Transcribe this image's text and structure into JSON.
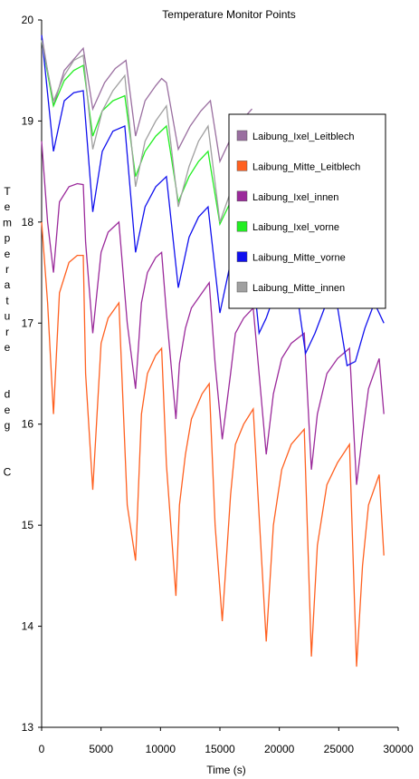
{
  "chart_data": {
    "type": "line",
    "title": "Temperature Monitor Points",
    "xlabel": "Time  (s)",
    "ylabel": "Temperature  deg  C",
    "xlim": [
      0,
      30000
    ],
    "ylim": [
      13,
      20
    ],
    "xticks": [
      0,
      5000,
      10000,
      15000,
      20000,
      25000,
      30000
    ],
    "yticks": [
      13,
      14,
      15,
      16,
      17,
      18,
      19,
      20
    ],
    "grid": false,
    "legend_position": "right, upper-middle",
    "series": [
      {
        "name": "Laibung_Ixel_Leitblech",
        "color": "#9a6fa0",
        "x": [
          0,
          1000,
          1900,
          3500,
          4300,
          5300,
          6200,
          7100,
          7900,
          8700,
          9600,
          10100,
          10500,
          11500,
          12500,
          13400,
          14200,
          15000,
          16000,
          16800,
          17700
        ],
        "y": [
          19.85,
          19.15,
          19.5,
          19.72,
          19.12,
          19.38,
          19.52,
          19.6,
          18.85,
          19.2,
          19.35,
          19.42,
          19.38,
          18.72,
          18.95,
          19.1,
          19.2,
          18.6,
          18.85,
          19.0,
          19.12
        ]
      },
      {
        "name": "Laibung_Mitte_Leitblech",
        "color": "#ff6020",
        "x": [
          0,
          500,
          1000,
          1500,
          2300,
          3000,
          3500,
          3700,
          4300,
          5000,
          5600,
          6500,
          7200,
          7900,
          8400,
          8900,
          9600,
          10100,
          10500,
          11300,
          11600,
          12100,
          12600,
          13500,
          14100,
          14600,
          15200,
          15900,
          16300,
          17000,
          17800,
          18300,
          18900,
          19500,
          20200,
          21000,
          22100,
          22700,
          23200,
          24000,
          24900,
          25900,
          26500,
          27000,
          27500,
          28400,
          28800
        ],
        "y": [
          18.0,
          17.2,
          16.1,
          17.3,
          17.6,
          17.67,
          17.67,
          16.5,
          15.35,
          16.8,
          17.05,
          17.2,
          15.2,
          14.65,
          16.1,
          16.5,
          16.68,
          16.75,
          15.6,
          14.3,
          15.2,
          15.7,
          16.05,
          16.3,
          16.4,
          15.0,
          14.05,
          15.3,
          15.8,
          16.0,
          16.15,
          15.1,
          13.85,
          15.0,
          15.55,
          15.8,
          15.95,
          13.7,
          14.8,
          15.4,
          15.62,
          15.8,
          13.6,
          14.6,
          15.2,
          15.5,
          14.7
        ]
      },
      {
        "name": "Laibung_Ixel_innen",
        "color": "#9b2a9b",
        "x": [
          0,
          500,
          1000,
          1500,
          2300,
          3000,
          3500,
          3700,
          4300,
          5000,
          5600,
          6500,
          7200,
          7900,
          8400,
          8900,
          9600,
          10100,
          10500,
          11300,
          11600,
          12100,
          12600,
          13500,
          14100,
          14600,
          15200,
          15900,
          16300,
          17000,
          17800,
          18300,
          18900,
          19500,
          20200,
          21000,
          22100,
          22700,
          23200,
          24000,
          24900,
          25900,
          26500,
          27000,
          27500,
          28400,
          28800
        ],
        "y": [
          18.8,
          18.0,
          17.5,
          18.2,
          18.35,
          18.38,
          18.37,
          17.8,
          16.9,
          17.7,
          17.9,
          18.0,
          17.0,
          16.35,
          17.2,
          17.5,
          17.65,
          17.7,
          17.1,
          16.05,
          16.6,
          16.95,
          17.15,
          17.3,
          17.4,
          16.6,
          15.85,
          16.5,
          16.9,
          17.05,
          17.15,
          16.5,
          15.7,
          16.3,
          16.65,
          16.8,
          16.9,
          15.55,
          16.1,
          16.5,
          16.65,
          16.75,
          15.4,
          15.9,
          16.35,
          16.65,
          16.1
        ]
      },
      {
        "name": "Laibung_Ixel_vorne",
        "color": "#22ee22",
        "x": [
          0,
          1000,
          1900,
          2700,
          3500,
          4300,
          5100,
          6000,
          7000,
          7900,
          8700,
          9600,
          10500,
          11500,
          12400,
          13200,
          14000,
          15000,
          15900
        ],
        "y": [
          19.8,
          19.15,
          19.4,
          19.5,
          19.55,
          18.85,
          19.1,
          19.2,
          19.25,
          18.45,
          18.7,
          18.85,
          18.95,
          18.2,
          18.45,
          18.6,
          18.7,
          17.98,
          18.2
        ]
      },
      {
        "name": "Laibung_Mitte_vorne",
        "color": "#1010ee",
        "x": [
          0,
          1000,
          1900,
          2700,
          3500,
          4300,
          5100,
          6000,
          7000,
          7900,
          8700,
          9600,
          10500,
          11500,
          12400,
          13200,
          14000,
          15000,
          15900,
          16800,
          17500,
          18300,
          18900,
          19500,
          20400,
          21300,
          22200,
          23000,
          23800,
          24700,
          25700,
          26400,
          27200,
          28000,
          28800
        ],
        "y": [
          19.85,
          18.7,
          19.2,
          19.28,
          19.3,
          18.1,
          18.7,
          18.9,
          18.95,
          17.7,
          18.15,
          18.35,
          18.45,
          17.35,
          17.85,
          18.05,
          18.15,
          17.1,
          17.6,
          17.8,
          17.85,
          16.9,
          17.05,
          17.25,
          17.3,
          17.45,
          16.7,
          16.9,
          17.15,
          17.3,
          16.58,
          16.62,
          16.95,
          17.2,
          17.0
        ]
      },
      {
        "name": "Laibung_Mitte_innen",
        "color": "#a0a0a0",
        "x": [
          0,
          1000,
          1900,
          2700,
          3500,
          4300,
          5100,
          6000,
          7000,
          7900,
          8700,
          9600,
          10500,
          11500,
          12400,
          13200,
          14000,
          15000,
          15900
        ],
        "y": [
          19.8,
          19.2,
          19.45,
          19.6,
          19.65,
          18.72,
          19.1,
          19.3,
          19.45,
          18.35,
          18.8,
          19.0,
          19.15,
          18.15,
          18.55,
          18.8,
          18.95,
          18.0,
          18.3
        ]
      }
    ]
  }
}
